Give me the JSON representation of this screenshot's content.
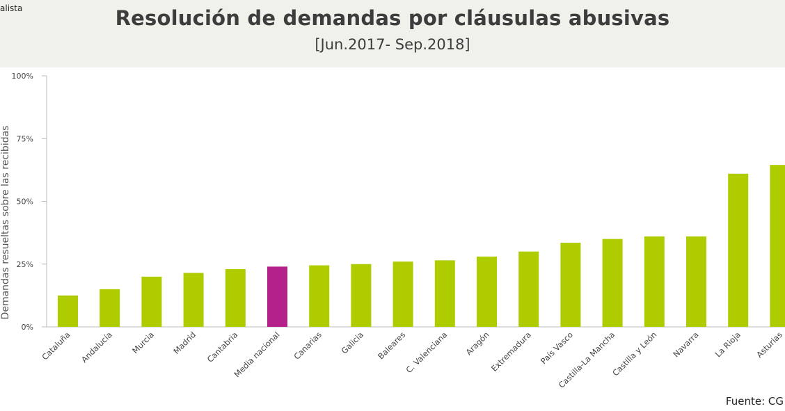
{
  "header": {
    "corner_text": "alista",
    "title": "Resolución de demandas por cláusulas abusivas",
    "subtitle": "[Jun.2017- Sep.2018]"
  },
  "source": "Fuente: CG",
  "colors": {
    "bar": "#aecc00",
    "highlight": "#b5218a",
    "header_bg": "#f1f1ec"
  },
  "chart_data": {
    "type": "bar",
    "title": "Resolución de demandas por cláusulas abusivas",
    "subtitle": "[Jun.2017- Sep.2018]",
    "ylabel": "Demandas resueltas sobre las recibidas",
    "ylim": [
      0,
      100
    ],
    "yticks": [
      0,
      25,
      50,
      75,
      100
    ],
    "ytick_labels": [
      "0%",
      "25%",
      "50%",
      "75%",
      "100%"
    ],
    "grid": false,
    "legend": "none",
    "highlight_category": "Media nacional",
    "categories": [
      "Cataluña",
      "Andalucía",
      "Murcia",
      "Madrid",
      "Cantabria",
      "Media nacional",
      "Canarias",
      "Galicia",
      "Baleares",
      "C. Valenciana",
      "Aragón",
      "Extremadura",
      "País Vasco",
      "Castilla-La Mancha",
      "Castilla y León",
      "Navarra",
      "La Rioja",
      "Asturias"
    ],
    "values": [
      12.5,
      15,
      20,
      21.5,
      23,
      24,
      24.5,
      25,
      26,
      26.5,
      28,
      30,
      33.5,
      35,
      36,
      36,
      61,
      64.5
    ]
  }
}
